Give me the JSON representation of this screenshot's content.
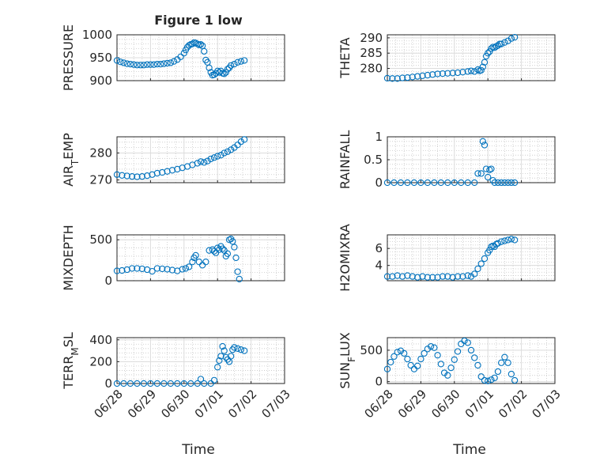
{
  "figure": {
    "title": "Figure 1 low",
    "xlabel": "Time"
  },
  "x_ticks": [
    "06/28",
    "06/29",
    "06/30",
    "07/01",
    "07/02",
    "07/03"
  ],
  "chart_data": [
    {
      "type": "scatter",
      "ylabel": "PRESSURE",
      "ylim": [
        900,
        1000
      ],
      "yticks": [
        "900",
        "950",
        "1000"
      ],
      "ytick_values": [
        900,
        950,
        1000
      ],
      "x": [
        0,
        0.1,
        0.2,
        0.3,
        0.4,
        0.5,
        0.6,
        0.7,
        0.8,
        0.9,
        1.0,
        1.1,
        1.2,
        1.3,
        1.4,
        1.5,
        1.6,
        1.7,
        1.8,
        1.9,
        2.0,
        2.05,
        2.1,
        2.15,
        2.2,
        2.25,
        2.3,
        2.35,
        2.4,
        2.45,
        2.5,
        2.55,
        2.6,
        2.65,
        2.7,
        2.75,
        2.8,
        2.85,
        2.9,
        2.95,
        3.0,
        3.05,
        3.1,
        3.15,
        3.2,
        3.25,
        3.3,
        3.35,
        3.4,
        3.5,
        3.6,
        3.7,
        3.8
      ],
      "y": [
        944,
        941,
        939,
        937,
        936,
        935,
        934,
        934,
        934,
        935,
        935,
        935,
        936,
        936,
        937,
        938,
        939,
        942,
        946,
        952,
        960,
        967,
        973,
        977,
        979,
        980,
        983,
        982,
        980,
        978,
        979,
        976,
        964,
        945,
        940,
        928,
        918,
        912,
        913,
        916,
        921,
        918,
        921,
        916,
        915,
        918,
        925,
        928,
        933,
        936,
        940,
        942,
        944
      ]
    },
    {
      "type": "scatter",
      "ylabel": "THETA",
      "ylim": [
        276,
        291
      ],
      "yticks": [
        "280",
        "285",
        "290"
      ],
      "ytick_values": [
        280,
        285,
        290
      ],
      "x": [
        0,
        0.15,
        0.3,
        0.45,
        0.6,
        0.75,
        0.9,
        1.05,
        1.2,
        1.35,
        1.5,
        1.65,
        1.8,
        1.95,
        2.1,
        2.25,
        2.4,
        2.5,
        2.6,
        2.7,
        2.75,
        2.8,
        2.85,
        2.9,
        2.95,
        3.0,
        3.05,
        3.1,
        3.15,
        3.2,
        3.25,
        3.3,
        3.35,
        3.4,
        3.5,
        3.6,
        3.7,
        3.8
      ],
      "y": [
        276.8,
        276.7,
        276.7,
        276.9,
        277.0,
        277.2,
        277.4,
        277.6,
        277.8,
        278.0,
        278.2,
        278.3,
        278.4,
        278.5,
        278.6,
        278.8,
        279.0,
        279.2,
        279.0,
        279.6,
        279.2,
        279.4,
        280.5,
        282.0,
        284.0,
        285.0,
        285.5,
        286.5,
        287.0,
        286.8,
        287.2,
        287.5,
        288.0,
        288.0,
        288.5,
        289.0,
        289.8,
        290.2
      ]
    },
    {
      "type": "scatter",
      "ylabel": "AIR_TEMP",
      "ylim": [
        269,
        286
      ],
      "yticks": [
        "270",
        "280"
      ],
      "ytick_values": [
        270,
        280
      ],
      "x": [
        0,
        0.15,
        0.3,
        0.45,
        0.6,
        0.75,
        0.9,
        1.05,
        1.2,
        1.35,
        1.5,
        1.65,
        1.8,
        1.95,
        2.1,
        2.25,
        2.4,
        2.5,
        2.6,
        2.7,
        2.8,
        2.9,
        3.0,
        3.1,
        3.2,
        3.3,
        3.4,
        3.5,
        3.6,
        3.7,
        3.8
      ],
      "y": [
        272,
        271.7,
        271.5,
        271.3,
        271.2,
        271.3,
        271.6,
        272.0,
        272.5,
        272.8,
        273.2,
        273.6,
        274.0,
        274.5,
        275.0,
        275.6,
        276.2,
        276.8,
        276.5,
        277.0,
        277.8,
        278.3,
        278.8,
        279.2,
        280.0,
        280.5,
        281.2,
        282.0,
        283.0,
        284.2,
        285.0
      ]
    },
    {
      "type": "scatter",
      "ylabel": "RAINFALL",
      "ylim": [
        0,
        1
      ],
      "yticks": [
        "0",
        "0.5",
        "1"
      ],
      "ytick_values": [
        0,
        0.5,
        1
      ],
      "x": [
        0,
        0.2,
        0.4,
        0.6,
        0.8,
        1.0,
        1.2,
        1.4,
        1.6,
        1.8,
        2.0,
        2.2,
        2.4,
        2.6,
        2.7,
        2.8,
        2.85,
        2.9,
        2.95,
        3.0,
        3.05,
        3.1,
        3.15,
        3.2,
        3.3,
        3.4,
        3.5,
        3.6,
        3.7,
        3.8
      ],
      "y": [
        0,
        0,
        0,
        0,
        0,
        0,
        0,
        0,
        0,
        0,
        0,
        0,
        0,
        0,
        0.2,
        0.2,
        0.9,
        0.82,
        0.3,
        0.12,
        0.28,
        0.3,
        0.05,
        0,
        0,
        0,
        0,
        0,
        0,
        0
      ]
    },
    {
      "type": "scatter",
      "ylabel": "MIXDEPTH",
      "ylim": [
        0,
        560
      ],
      "yticks": [
        "0",
        "500"
      ],
      "ytick_values": [
        0,
        500
      ],
      "x": [
        0,
        0.15,
        0.3,
        0.45,
        0.6,
        0.75,
        0.9,
        1.05,
        1.2,
        1.35,
        1.5,
        1.65,
        1.8,
        1.95,
        2.05,
        2.15,
        2.25,
        2.3,
        2.35,
        2.45,
        2.55,
        2.65,
        2.75,
        2.85,
        2.9,
        2.95,
        3.0,
        3.05,
        3.1,
        3.15,
        3.2,
        3.25,
        3.3,
        3.35,
        3.4,
        3.45,
        3.5,
        3.55,
        3.6,
        3.65
      ],
      "y": [
        120,
        125,
        135,
        150,
        150,
        145,
        135,
        115,
        150,
        145,
        140,
        130,
        120,
        140,
        150,
        170,
        230,
        280,
        310,
        230,
        190,
        230,
        370,
        380,
        360,
        340,
        400,
        380,
        420,
        390,
        370,
        300,
        330,
        500,
        510,
        480,
        410,
        280,
        110,
        20
      ]
    },
    {
      "type": "scatter",
      "ylabel": "H2OMIXRA",
      "ylim": [
        2.2,
        7.6
      ],
      "yticks": [
        "4",
        "6"
      ],
      "ytick_values": [
        4,
        6
      ],
      "x": [
        0,
        0.15,
        0.3,
        0.45,
        0.6,
        0.75,
        0.9,
        1.05,
        1.2,
        1.35,
        1.5,
        1.65,
        1.8,
        1.95,
        2.1,
        2.25,
        2.4,
        2.5,
        2.6,
        2.7,
        2.8,
        2.9,
        3.0,
        3.05,
        3.1,
        3.15,
        3.2,
        3.25,
        3.3,
        3.4,
        3.5,
        3.6,
        3.7,
        3.8
      ],
      "y": [
        2.7,
        2.7,
        2.8,
        2.7,
        2.8,
        2.7,
        2.6,
        2.7,
        2.6,
        2.6,
        2.6,
        2.7,
        2.7,
        2.6,
        2.7,
        2.7,
        2.8,
        2.7,
        3.0,
        3.6,
        4.2,
        4.8,
        5.5,
        5.8,
        6.2,
        6.3,
        6.2,
        6.5,
        6.6,
        6.8,
        6.9,
        7.0,
        7.1,
        7.0
      ]
    },
    {
      "type": "scatter",
      "ylabel": "TERR_MSL",
      "ylim": [
        0,
        420
      ],
      "yticks": [
        "0",
        "200",
        "400"
      ],
      "ytick_values": [
        0,
        200,
        400
      ],
      "x": [
        0,
        0.2,
        0.4,
        0.6,
        0.8,
        1.0,
        1.2,
        1.4,
        1.6,
        1.8,
        2.0,
        2.2,
        2.4,
        2.5,
        2.6,
        2.8,
        2.9,
        3.0,
        3.05,
        3.1,
        3.15,
        3.2,
        3.25,
        3.3,
        3.35,
        3.4,
        3.45,
        3.5,
        3.6,
        3.7,
        3.8
      ],
      "y": [
        0,
        0,
        0,
        0,
        0,
        0,
        0,
        0,
        0,
        0,
        0,
        0,
        0,
        40,
        0,
        0,
        30,
        150,
        210,
        250,
        340,
        300,
        240,
        220,
        200,
        250,
        310,
        330,
        320,
        310,
        300
      ]
    },
    {
      "type": "scatter",
      "ylabel": "SUN_FLUX",
      "ylim": [
        -30,
        700
      ],
      "yticks": [
        "0",
        "500"
      ],
      "ytick_values": [
        0,
        500
      ],
      "x": [
        0,
        0.1,
        0.2,
        0.3,
        0.4,
        0.5,
        0.6,
        0.7,
        0.8,
        0.9,
        1.0,
        1.1,
        1.2,
        1.3,
        1.4,
        1.5,
        1.6,
        1.7,
        1.8,
        1.9,
        2.0,
        2.1,
        2.2,
        2.3,
        2.4,
        2.5,
        2.6,
        2.7,
        2.8,
        2.9,
        3.0,
        3.1,
        3.2,
        3.3,
        3.4,
        3.5,
        3.6,
        3.7,
        3.8
      ],
      "y": [
        200,
        310,
        400,
        470,
        490,
        450,
        360,
        260,
        200,
        250,
        360,
        450,
        520,
        560,
        540,
        420,
        280,
        140,
        100,
        220,
        350,
        480,
        600,
        650,
        620,
        500,
        380,
        260,
        80,
        20,
        10,
        30,
        60,
        160,
        300,
        390,
        300,
        120,
        20
      ]
    }
  ]
}
